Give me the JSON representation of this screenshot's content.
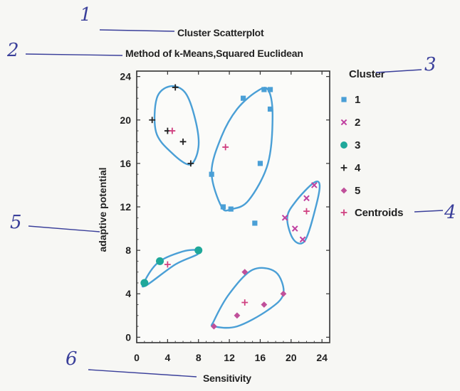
{
  "annotations": [
    "1",
    "2",
    "3",
    "4",
    "5",
    "6"
  ],
  "chart_data": {
    "type": "scatter",
    "title": "Cluster Scatterplot",
    "subtitle": "Method of k-Means,Squared Euclidean",
    "xlabel": "Sensitivity",
    "ylabel": "adaptive potential",
    "xlim": [
      0,
      25
    ],
    "ylim": [
      -0.5,
      24.5
    ],
    "xticks": [
      0,
      4,
      8,
      12,
      16,
      20,
      24
    ],
    "yticks": [
      0,
      4,
      8,
      12,
      16,
      20,
      24
    ],
    "grid": false,
    "legend": {
      "title": "Cluster",
      "placement": "right",
      "entries": [
        "1",
        "2",
        "3",
        "4",
        "5",
        "Centroids"
      ]
    },
    "series": [
      {
        "name": "1",
        "marker": "square",
        "color": "#4a9fd6",
        "x": [
          9.7,
          11.2,
          12.2,
          13.8,
          16.5,
          17.3,
          17.3,
          16.0,
          15.3
        ],
        "y": [
          15.0,
          12.0,
          11.8,
          22.0,
          22.8,
          22.8,
          21.0,
          16.0,
          10.5
        ]
      },
      {
        "name": "2",
        "marker": "x",
        "color": "#c040a0",
        "x": [
          19.2,
          20.5,
          21.5,
          22.0,
          23.0
        ],
        "y": [
          11.0,
          10.0,
          9.0,
          12.8,
          14.0
        ]
      },
      {
        "name": "3",
        "marker": "circle",
        "color": "#1fa89a",
        "x": [
          1.0,
          3.0,
          8.0
        ],
        "y": [
          5.0,
          7.0,
          8.0
        ]
      },
      {
        "name": "4",
        "marker": "plus",
        "color": "#222222",
        "x": [
          2.0,
          4.0,
          6.0,
          7.0,
          5.0
        ],
        "y": [
          20.0,
          19.0,
          18.0,
          16.0,
          23.0
        ]
      },
      {
        "name": "5",
        "marker": "diamond",
        "color": "#c0509a",
        "x": [
          10.0,
          13.0,
          14.0,
          16.5,
          19.0
        ],
        "y": [
          1.0,
          2.0,
          6.0,
          3.0,
          4.0
        ]
      },
      {
        "name": "Centroids",
        "marker": "plus",
        "color": "#d04080",
        "x": [
          11.5,
          4.6,
          14.0,
          22.0,
          4.0
        ],
        "y": [
          17.5,
          19.0,
          3.2,
          11.6,
          6.7
        ]
      }
    ],
    "outlines": [
      [
        [
          4.3,
          23.1
        ],
        [
          6.3,
          22.5
        ],
        [
          7.6,
          20.0
        ],
        [
          8.0,
          17.5
        ],
        [
          6.9,
          15.9
        ],
        [
          4.5,
          17.0
        ],
        [
          2.5,
          18.9
        ],
        [
          2.6,
          22.0
        ]
      ],
      [
        [
          9.7,
          15.2
        ],
        [
          11.0,
          12.0
        ],
        [
          12.3,
          11.8
        ],
        [
          14.5,
          12.6
        ],
        [
          17.0,
          16.0
        ],
        [
          17.6,
          20.5
        ],
        [
          17.0,
          22.8
        ],
        [
          15.5,
          22.6
        ],
        [
          13.0,
          21.0
        ],
        [
          11.0,
          18.5
        ]
      ],
      [
        [
          20.3,
          9.0
        ],
        [
          21.8,
          8.9
        ],
        [
          23.2,
          12.0
        ],
        [
          23.7,
          14.0
        ],
        [
          22.9,
          14.2
        ],
        [
          20.6,
          12.5
        ],
        [
          19.5,
          11.0
        ]
      ],
      [
        [
          0.9,
          5.0
        ],
        [
          2.8,
          6.9
        ],
        [
          6.0,
          7.9
        ],
        [
          8.0,
          8.0
        ],
        [
          7.8,
          7.6
        ],
        [
          5.0,
          6.7
        ],
        [
          1.3,
          4.8
        ]
      ],
      [
        [
          10.0,
          1.0
        ],
        [
          13.0,
          1.0
        ],
        [
          17.0,
          2.5
        ],
        [
          19.0,
          4.0
        ],
        [
          18.0,
          6.0
        ],
        [
          15.0,
          6.2
        ],
        [
          12.0,
          4.0
        ],
        [
          10.0,
          1.5
        ]
      ]
    ]
  }
}
